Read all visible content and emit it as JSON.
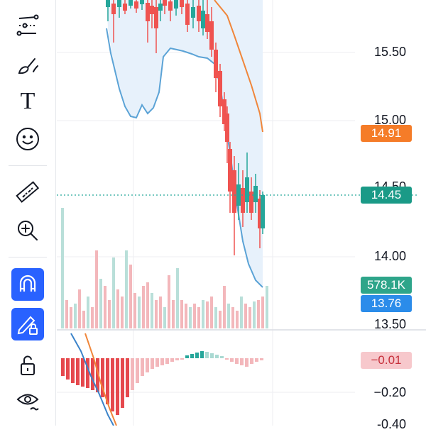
{
  "toolbar": {
    "items": [
      {
        "name": "trend-line-tool",
        "icon": "trend-lines-icon"
      },
      {
        "name": "brush-tool",
        "icon": "brush-icon"
      },
      {
        "name": "text-tool",
        "icon": "text-icon"
      },
      {
        "name": "emoji-tool",
        "icon": "smiley-icon"
      },
      {
        "name": "measure-tool",
        "icon": "ruler-icon"
      },
      {
        "name": "zoom-tool",
        "icon": "zoom-in-icon"
      },
      {
        "name": "magnet-tool",
        "icon": "magnet-icon",
        "active": true
      },
      {
        "name": "lock-drawings-tool",
        "icon": "pencil-lock-icon",
        "active": true
      },
      {
        "name": "unlock-tool",
        "icon": "unlock-icon"
      },
      {
        "name": "visibility-tool",
        "icon": "eye-icon"
      }
    ],
    "text_tool_glyph": "T"
  },
  "price_axis": {
    "labels": [
      "15.50",
      "15.00",
      "14.50",
      "14.00",
      "13.50"
    ]
  },
  "indicator_axis": {
    "labels": [
      "−0.20",
      "-0.40"
    ]
  },
  "tags": {
    "moving_average": {
      "value": "14.91",
      "color": "#f57c28"
    },
    "last_price": {
      "value": "14.45",
      "color": "#1a9a87"
    },
    "volume": {
      "value": "578.1K",
      "color": "#2ea58a"
    },
    "lower_band": {
      "value": "13.76",
      "color": "#2b8cea"
    },
    "macd": {
      "value": "−0.01",
      "color": "#f7c8cc",
      "text_color": "#c62f3a"
    }
  },
  "colors": {
    "up": "#26a69a",
    "down": "#ef5350",
    "band_fill": "#e7f1fb",
    "band_line": "#5ba3d6",
    "ma_line": "#f0863a",
    "accent": "#2962ff"
  }
}
